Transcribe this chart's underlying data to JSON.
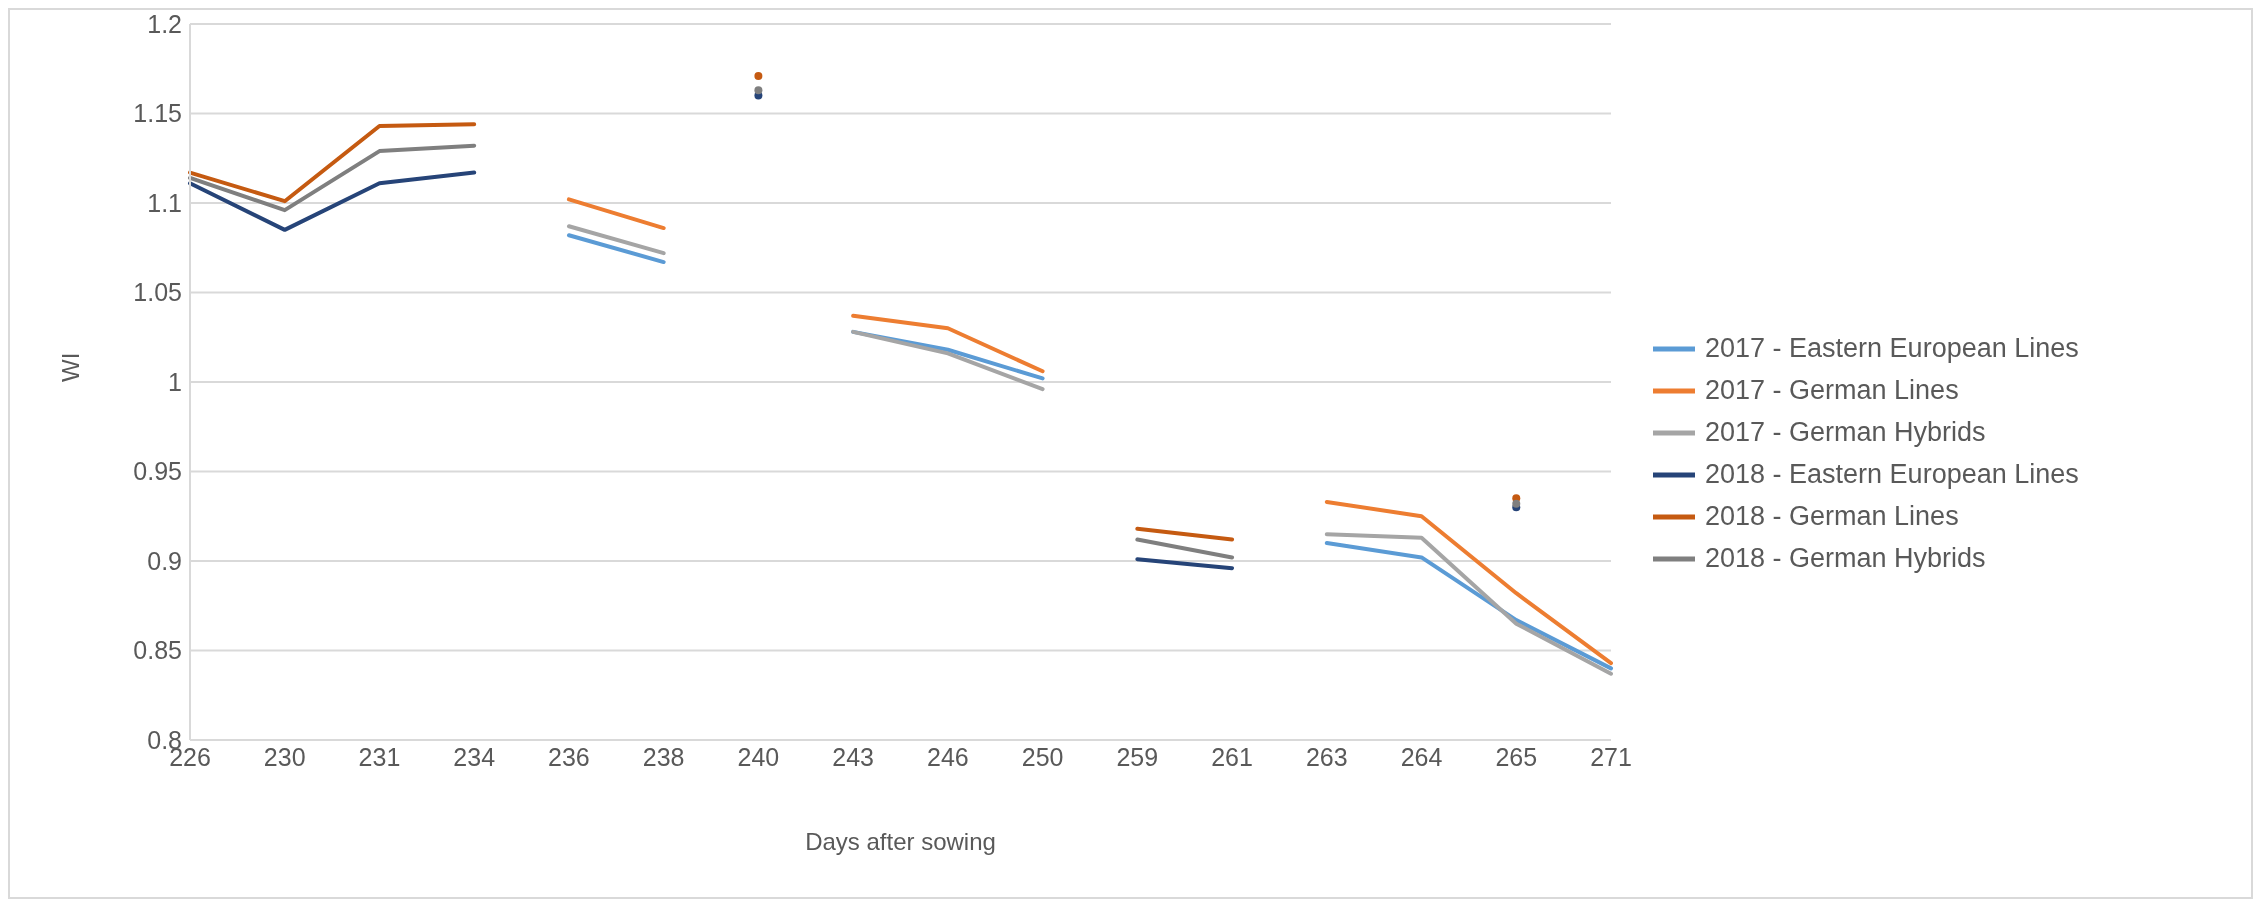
{
  "chart_data": {
    "type": "line",
    "xlabel": "Days after sowing",
    "ylabel": "WI",
    "categories": [
      "226",
      "230",
      "231",
      "234",
      "236",
      "238",
      "240",
      "243",
      "246",
      "250",
      "259",
      "261",
      "263",
      "264",
      "265",
      "271"
    ],
    "series": [
      {
        "name": "2017 - Eastern European Lines",
        "color": "#5b9bd5",
        "values": [
          null,
          null,
          null,
          null,
          1.082,
          1.067,
          null,
          1.028,
          1.018,
          1.002,
          null,
          null,
          0.91,
          0.902,
          0.867,
          0.84
        ]
      },
      {
        "name": "2017 - German Lines",
        "color": "#ed7d31",
        "values": [
          null,
          null,
          null,
          null,
          1.102,
          1.086,
          null,
          1.037,
          1.03,
          1.006,
          null,
          null,
          0.933,
          0.925,
          0.882,
          0.843
        ]
      },
      {
        "name": "2017 - German Hybrids",
        "color": "#a5a5a5",
        "values": [
          null,
          null,
          null,
          null,
          1.087,
          1.072,
          null,
          1.028,
          1.016,
          0.996,
          null,
          null,
          0.915,
          0.913,
          0.865,
          0.837
        ]
      },
      {
        "name": "2018 - Eastern European Lines",
        "color": "#264478",
        "values": [
          1.111,
          1.085,
          1.111,
          1.117,
          null,
          null,
          1.16,
          null,
          null,
          null,
          0.901,
          0.896,
          null,
          null,
          0.93,
          null
        ]
      },
      {
        "name": "2018 - German Lines",
        "color": "#c55a11",
        "values": [
          1.117,
          1.101,
          1.143,
          1.144,
          null,
          null,
          1.171,
          null,
          null,
          null,
          0.918,
          0.912,
          null,
          null,
          0.935,
          null
        ]
      },
      {
        "name": "2018 - German Hybrids",
        "color": "#7f7f7f",
        "values": [
          1.114,
          1.096,
          1.129,
          1.132,
          null,
          null,
          1.163,
          null,
          null,
          null,
          0.912,
          0.902,
          null,
          null,
          0.932,
          null
        ]
      }
    ],
    "ylim": [
      0.8,
      1.2
    ],
    "yticks": [
      0.8,
      0.85,
      0.9,
      0.95,
      1,
      1.05,
      1.1,
      1.15,
      1.2
    ],
    "grid": "y",
    "legend": "right",
    "marker": "none",
    "line_style": "solid"
  }
}
